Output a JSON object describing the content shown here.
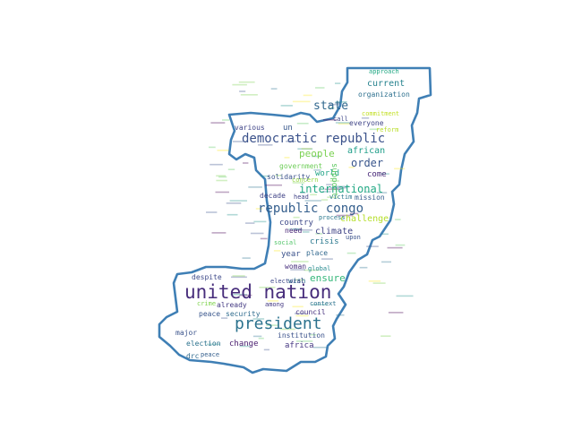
{
  "outline_color": "#3f7fb5",
  "words": [
    {
      "text": "united nation",
      "color": "#472d7b"
    },
    {
      "text": "president",
      "color": "#2c728e"
    },
    {
      "text": "democratic republic",
      "color": "#3b528b"
    },
    {
      "text": "republic congo",
      "color": "#355f8d"
    },
    {
      "text": "international",
      "color": "#22a884"
    },
    {
      "text": "state",
      "color": "#31688e"
    },
    {
      "text": "order",
      "color": "#39568c"
    },
    {
      "text": "people",
      "color": "#7ad151"
    },
    {
      "text": "african",
      "color": "#1f9e89"
    },
    {
      "text": "current",
      "color": "#26828e"
    },
    {
      "text": "ensure",
      "color": "#35b779"
    },
    {
      "text": "challenge",
      "color": "#b5de2b"
    },
    {
      "text": "climate",
      "color": "#414487"
    },
    {
      "text": "country",
      "color": "#3e4a89"
    },
    {
      "text": "crisis",
      "color": "#2a788e"
    },
    {
      "text": "world",
      "color": "#20a386"
    },
    {
      "text": "come",
      "color": "#482878"
    },
    {
      "text": "solidarity",
      "color": "#3b528b"
    },
    {
      "text": "government",
      "color": "#6ece58"
    },
    {
      "text": "everyone",
      "color": "#404688"
    },
    {
      "text": "organization",
      "color": "#2d708e"
    },
    {
      "text": "approach",
      "color": "#22a884"
    },
    {
      "text": "commitment",
      "color": "#c2df23"
    },
    {
      "text": "mission",
      "color": "#365c8d"
    },
    {
      "text": "decade",
      "color": "#414487"
    },
    {
      "text": "need",
      "color": "#482576"
    },
    {
      "text": "year",
      "color": "#3b528b"
    },
    {
      "text": "place",
      "color": "#31688e"
    },
    {
      "text": "global",
      "color": "#23898e"
    },
    {
      "text": "woman",
      "color": "#472f7d"
    },
    {
      "text": "wish",
      "color": "#2e6e8e"
    },
    {
      "text": "despite",
      "color": "#3e4a89"
    },
    {
      "text": "already",
      "color": "#443a83"
    },
    {
      "text": "peace",
      "color": "#39568c"
    },
    {
      "text": "security",
      "color": "#2f6c8e"
    },
    {
      "text": "council",
      "color": "#46307e"
    },
    {
      "text": "institution",
      "color": "#3b528b"
    },
    {
      "text": "election",
      "color": "#2c728e"
    },
    {
      "text": "change",
      "color": "#481b6d"
    },
    {
      "text": "major",
      "color": "#3a538b"
    },
    {
      "text": "africa",
      "color": "#453781"
    },
    {
      "text": "drc",
      "color": "#306a8e"
    },
    {
      "text": "various",
      "color": "#404588"
    },
    {
      "text": "call",
      "color": "#3f4788"
    },
    {
      "text": "un",
      "color": "#38588c"
    },
    {
      "text": "support",
      "color": "#5ec962"
    },
    {
      "text": "concern",
      "color": "#95d840"
    },
    {
      "text": "head",
      "color": "#414487"
    },
    {
      "text": "victim",
      "color": "#2a768e"
    },
    {
      "text": "social",
      "color": "#52c569"
    },
    {
      "text": "upon",
      "color": "#3b528b"
    },
    {
      "text": "context",
      "color": "#2c738e"
    },
    {
      "text": "among",
      "color": "#443983"
    },
    {
      "text": "electoral",
      "color": "#3e4989"
    },
    {
      "text": "peace",
      "color": "#355f8d"
    },
    {
      "text": "crime",
      "color": "#7fd34e"
    },
    {
      "text": "reform",
      "color": "#b8de29"
    },
    {
      "text": "process",
      "color": "#2a788e"
    }
  ]
}
